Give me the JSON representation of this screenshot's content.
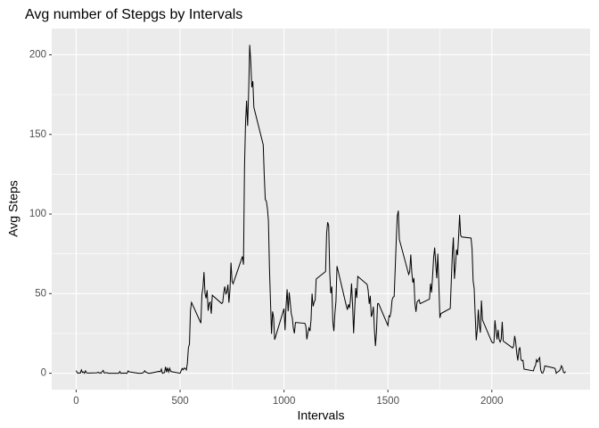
{
  "chart_data": {
    "type": "line",
    "title": "Avg number of Stepgs by Intervals",
    "x_label": "Intervals",
    "y_label": "Avg Steps",
    "x": [
      0,
      5,
      10,
      15,
      20,
      25,
      30,
      35,
      40,
      45,
      50,
      55,
      100,
      105,
      110,
      115,
      120,
      125,
      130,
      135,
      140,
      145,
      150,
      155,
      200,
      205,
      210,
      215,
      220,
      225,
      230,
      235,
      240,
      245,
      250,
      255,
      300,
      305,
      310,
      315,
      320,
      325,
      330,
      335,
      340,
      345,
      350,
      355,
      400,
      405,
      410,
      415,
      420,
      425,
      430,
      435,
      440,
      445,
      450,
      455,
      500,
      505,
      510,
      515,
      520,
      525,
      530,
      535,
      540,
      545,
      550,
      555,
      600,
      605,
      610,
      615,
      620,
      625,
      630,
      635,
      640,
      645,
      650,
      655,
      700,
      705,
      710,
      715,
      720,
      725,
      730,
      735,
      740,
      745,
      750,
      755,
      800,
      805,
      810,
      815,
      820,
      825,
      830,
      835,
      840,
      845,
      850,
      855,
      900,
      905,
      910,
      915,
      920,
      925,
      930,
      935,
      940,
      945,
      950,
      955,
      1000,
      1005,
      1010,
      1015,
      1020,
      1025,
      1030,
      1035,
      1040,
      1045,
      1050,
      1055,
      1100,
      1105,
      1110,
      1115,
      1120,
      1125,
      1130,
      1135,
      1140,
      1145,
      1150,
      1155,
      1200,
      1205,
      1210,
      1215,
      1220,
      1225,
      1230,
      1235,
      1240,
      1245,
      1250,
      1255,
      1300,
      1305,
      1310,
      1315,
      1320,
      1325,
      1330,
      1335,
      1340,
      1345,
      1350,
      1355,
      1400,
      1405,
      1410,
      1415,
      1420,
      1425,
      1430,
      1435,
      1440,
      1445,
      1450,
      1455,
      1500,
      1505,
      1510,
      1515,
      1520,
      1525,
      1530,
      1535,
      1540,
      1545,
      1550,
      1555,
      1600,
      1605,
      1610,
      1615,
      1620,
      1625,
      1630,
      1635,
      1640,
      1645,
      1650,
      1655,
      1700,
      1705,
      1710,
      1715,
      1720,
      1725,
      1730,
      1735,
      1740,
      1745,
      1750,
      1755,
      1800,
      1805,
      1810,
      1815,
      1820,
      1825,
      1830,
      1835,
      1840,
      1845,
      1850,
      1855,
      1900,
      1905,
      1910,
      1915,
      1920,
      1925,
      1930,
      1935,
      1940,
      1945,
      1950,
      1955,
      2000,
      2005,
      2010,
      2015,
      2020,
      2025,
      2030,
      2035,
      2040,
      2045,
      2050,
      2055,
      2100,
      2105,
      2110,
      2115,
      2120,
      2125,
      2130,
      2135,
      2140,
      2145,
      2150,
      2155,
      2200,
      2205,
      2210,
      2215,
      2220,
      2225,
      2230,
      2235,
      2240,
      2245,
      2250,
      2255,
      2300,
      2305,
      2310,
      2315,
      2320,
      2325,
      2330,
      2335,
      2340,
      2345,
      2350,
      2355
    ],
    "values": [
      1.7,
      0.3,
      0.1,
      0.2,
      0.1,
      2.1,
      0.5,
      0.9,
      0,
      1.5,
      0.3,
      0.1,
      0.3,
      0.7,
      0.2,
      0.3,
      0,
      1.1,
      1.8,
      0.2,
      0.2,
      0.4,
      0.3,
      0,
      0,
      0,
      1.1,
      0,
      0,
      0.1,
      0,
      0.2,
      0,
      0,
      1.5,
      0.9,
      0,
      0,
      0,
      0,
      0.2,
      0.6,
      1.6,
      0.6,
      0.5,
      0.1,
      0,
      0,
      1.2,
      0.9,
      2.6,
      0,
      0.3,
      0.4,
      4.1,
      0.7,
      3.5,
      0.8,
      3.1,
      1.1,
      0,
      1.6,
      3.0,
      2.2,
      3.3,
      3.0,
      2.1,
      6.1,
      16.0,
      18.3,
      39.5,
      44.5,
      31.5,
      49.3,
      53.8,
      63.5,
      50.0,
      47.1,
      52.2,
      39.3,
      44.0,
      44.7,
      37.4,
      49.0,
      43.8,
      44.4,
      50.5,
      54.5,
      49.9,
      51.0,
      55.7,
      44.3,
      52.3,
      69.5,
      57.8,
      56.2,
      73.4,
      68.2,
      129.4,
      157.5,
      171.2,
      155.4,
      177.3,
      206.2,
      195.9,
      179.6,
      183.4,
      167.0,
      143.5,
      124.0,
      109.1,
      108.1,
      103.7,
      95.9,
      66.2,
      45.2,
      24.8,
      38.8,
      35.0,
      21.1,
      40.6,
      27.0,
      42.4,
      52.7,
      38.9,
      50.8,
      44.3,
      37.4,
      34.7,
      28.3,
      25.1,
      31.9,
      31.4,
      29.7,
      21.3,
      25.5,
      28.4,
      26.5,
      33.4,
      50.0,
      42.0,
      44.6,
      46.0,
      59.2,
      63.9,
      87.7,
      94.8,
      92.8,
      63.4,
      50.2,
      54.5,
      32.4,
      26.5,
      37.7,
      45.1,
      67.3,
      42.3,
      39.9,
      43.3,
      41.0,
      46.2,
      56.4,
      42.8,
      25.1,
      40.0,
      53.5,
      47.3,
      60.8,
      55.8,
      52.0,
      43.6,
      48.7,
      35.5,
      37.5,
      41.8,
      27.5,
      17.1,
      26.1,
      43.6,
      43.8,
      30.0,
      36.1,
      35.5,
      38.8,
      46.0,
      47.8,
      48.1,
      65.3,
      82.9,
      98.7,
      102.1,
      84.0,
      62.1,
      64.1,
      74.5,
      63.2,
      56.9,
      59.8,
      43.9,
      38.6,
      44.7,
      45.5,
      46.2,
      43.7,
      46.6,
      56.3,
      50.7,
      61.2,
      72.7,
      78.9,
      68.9,
      59.7,
      75.1,
      56.5,
      34.8,
      37.5,
      40.7,
      58.0,
      74.7,
      85.3,
      59.3,
      67.8,
      77.7,
      74.2,
      85.3,
      99.5,
      86.6,
      85.6,
      84.9,
      77.8,
      58.0,
      53.4,
      36.3,
      20.7,
      27.4,
      40.0,
      30.2,
      25.5,
      45.7,
      33.5,
      19.6,
      19.0,
      19.3,
      33.3,
      26.8,
      21.2,
      27.3,
      21.3,
      19.6,
      21.3,
      32.3,
      20.2,
      15.9,
      17.2,
      23.5,
      19.2,
      12.5,
      8.0,
      14.7,
      16.3,
      8.7,
      7.8,
      8.1,
      2.6,
      1.5,
      3.7,
      4.8,
      8.5,
      7.1,
      8.7,
      9.8,
      2.2,
      0.3,
      0.1,
      1.6,
      4.6,
      3.3,
      2.8,
      0,
      0.8,
      1.0,
      1.6,
      2.6,
      4.7,
      3.3,
      0.6,
      0.2,
      1.1
    ],
    "color": "#000000",
    "xlim": [
      -117.75,
      2472.75
    ],
    "ylim": [
      -10.3,
      216.5
    ],
    "xticks": [
      0,
      500,
      1000,
      1500,
      2000
    ],
    "yticks": [
      0,
      50,
      100,
      150,
      200
    ],
    "grid": true
  }
}
